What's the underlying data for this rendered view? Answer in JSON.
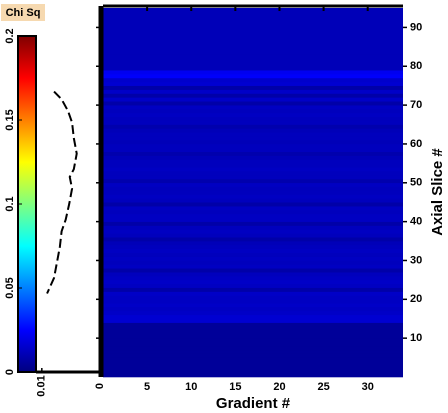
{
  "chart_data": {
    "type": "heatmap",
    "x_label": "Gradient #",
    "y_label": "Axial Slice #",
    "xlim": [
      0,
      34
    ],
    "xticks": [
      5,
      10,
      15,
      20,
      25,
      30
    ],
    "ylim": [
      0,
      95
    ],
    "yticks": [
      10,
      20,
      30,
      40,
      50,
      60,
      70,
      80,
      90
    ],
    "slices": [
      0,
      1,
      2,
      3,
      4,
      5,
      6,
      7,
      8,
      9,
      10,
      11,
      12,
      13,
      14,
      15,
      16,
      17,
      18,
      19,
      20,
      21,
      22,
      23,
      24,
      25,
      26,
      27,
      28,
      29,
      30,
      31,
      32,
      33,
      34,
      35,
      36,
      37,
      38,
      39,
      40,
      41,
      42,
      43,
      44,
      45,
      46,
      47,
      48,
      49,
      50,
      51,
      52,
      53,
      54,
      55,
      56,
      57,
      58,
      59,
      60,
      61,
      62,
      63,
      64,
      65,
      66,
      67,
      68,
      69,
      70,
      71,
      72,
      73,
      74,
      75,
      76,
      77,
      78,
      79,
      80,
      81,
      82,
      83,
      84,
      85,
      86,
      87,
      88,
      89,
      90,
      91,
      92,
      93,
      94
    ],
    "values": [
      0.005,
      0.005,
      0.005,
      0.005,
      0.005,
      0.005,
      0.005,
      0.005,
      0.005,
      0.005,
      0.005,
      0.005,
      0.005,
      0.005,
      0.016,
      0.016,
      0.014,
      0.013,
      0.014,
      0.013,
      0.013,
      0.014,
      0.008,
      0.013,
      0.014,
      0.013,
      0.012,
      0.008,
      0.013,
      0.012,
      0.013,
      0.012,
      0.013,
      0.012,
      0.011,
      0.008,
      0.012,
      0.013,
      0.012,
      0.008,
      0.013,
      0.013,
      0.012,
      0.013,
      0.008,
      0.012,
      0.013,
      0.012,
      0.012,
      0.013,
      0.009,
      0.012,
      0.012,
      0.013,
      0.012,
      0.012,
      0.011,
      0.009,
      0.012,
      0.012,
      0.011,
      0.012,
      0.012,
      0.011,
      0.009,
      0.012,
      0.012,
      0.013,
      0.012,
      0.013,
      0.008,
      0.014,
      0.008,
      0.014,
      0.008,
      0.016,
      0.015,
      0.024,
      0.022,
      0.011,
      0.011,
      0.011,
      0.011,
      0.011,
      0.011,
      0.011,
      0.011,
      0.011,
      0.011,
      0.011,
      0.011,
      0.011,
      0.011,
      0.011,
      0.011
    ],
    "colorbar": {
      "title": "Chi Sq",
      "clim": [
        0,
        0.2
      ],
      "ticks": [
        0,
        0.05,
        0.1,
        0.15,
        0.2
      ],
      "colormap": "jet"
    },
    "profile": {
      "slices": [
        73,
        71,
        68,
        65,
        61,
        57,
        53,
        51,
        48,
        44,
        40,
        37,
        33,
        29,
        25,
        21
      ],
      "values": [
        0.0079,
        0.0066,
        0.0055,
        0.0048,
        0.0045,
        0.004,
        0.0045,
        0.0052,
        0.0048,
        0.0053,
        0.0059,
        0.0066,
        0.0069,
        0.0074,
        0.0079,
        0.0091
      ],
      "xlim": [
        0.011,
        0
      ],
      "xticks": [
        0.01,
        0
      ],
      "color": "#000000"
    }
  }
}
